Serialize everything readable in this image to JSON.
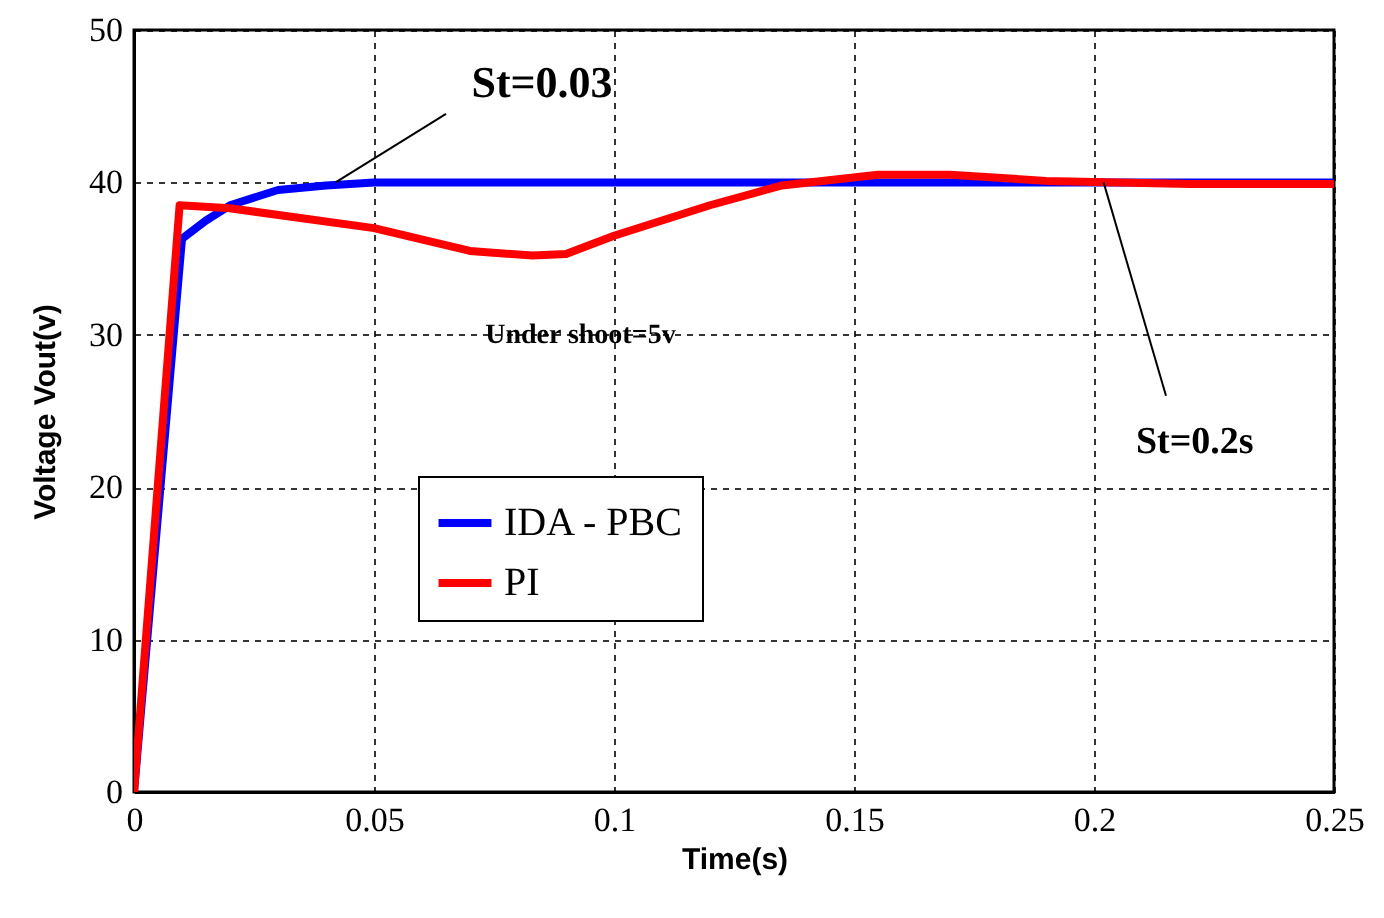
{
  "chart_data": {
    "type": "line",
    "xlabel": "Time(s)",
    "ylabel": "Voltage Vout(v)",
    "xlim": [
      0,
      0.25
    ],
    "xticks": [
      0,
      0.05,
      0.1,
      0.15,
      0.2,
      0.25
    ],
    "ylim": [
      0,
      50
    ],
    "yticks": [
      0,
      10,
      20,
      30,
      40,
      50
    ],
    "grid": true,
    "legend": "left",
    "line_style": "solid",
    "series": [
      {
        "name": "IDA - PBC",
        "color": "#0000ff",
        "x": [
          0,
          0.01,
          0.015,
          0.02,
          0.03,
          0.04,
          0.05,
          0.1,
          0.15,
          0.2,
          0.25
        ],
        "values": [
          0,
          36.3,
          37.5,
          38.5,
          39.5,
          39.8,
          40,
          40,
          40,
          40,
          40
        ]
      },
      {
        "name": "PI",
        "color": "#ff0000",
        "x": [
          0,
          0.0095,
          0.02,
          0.05,
          0.07,
          0.083,
          0.09,
          0.1,
          0.12,
          0.135,
          0.155,
          0.17,
          0.19,
          0.22,
          0.25
        ],
        "values": [
          0,
          38.5,
          38.3,
          37,
          35.5,
          35.2,
          35.3,
          36.5,
          38.5,
          39.8,
          40.5,
          40.5,
          40.1,
          39.9,
          39.9
        ]
      }
    ],
    "annotations": [
      {
        "text": "St=0.03",
        "x": 0.042,
        "y": 40
      },
      {
        "text": "Under shoot=5v",
        "x": 0.083,
        "y": 35.2
      },
      {
        "text": "St=0.2s",
        "x": 0.202,
        "y": 40
      }
    ]
  }
}
